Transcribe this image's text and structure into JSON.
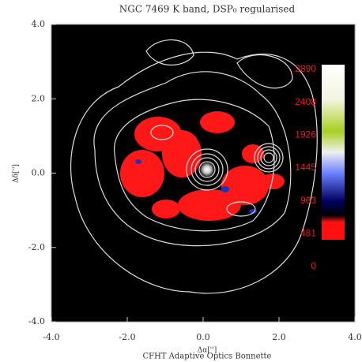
{
  "chart_data": {
    "type": "image",
    "title": "NGC 7469 K band, DSP₀ regularised",
    "xlabel": "Δα['']",
    "ylabel": "Δδ['']",
    "footer": "CFHT Adaptive Optics Bonnette",
    "xlim": [
      -4,
      4
    ],
    "ylim": [
      -4,
      4
    ],
    "xticks": [
      {
        "value": -4,
        "label": "-4.0"
      },
      {
        "value": -2,
        "label": "-2.0"
      },
      {
        "value": 0,
        "label": "0.0"
      },
      {
        "value": 2,
        "label": "2.0"
      },
      {
        "value": 4,
        "label": "4.0"
      }
    ],
    "yticks": [
      {
        "value": -4,
        "label": "-4.0"
      },
      {
        "value": -2,
        "label": "-2.0"
      },
      {
        "value": 0,
        "label": "0.0"
      },
      {
        "value": 2,
        "label": "2.0"
      },
      {
        "value": 4,
        "label": "4.0"
      }
    ],
    "colorbar": {
      "lim": [
        0,
        2890
      ],
      "ticks": [
        0,
        481,
        963,
        1445,
        1926,
        2408,
        2890
      ]
    }
  }
}
